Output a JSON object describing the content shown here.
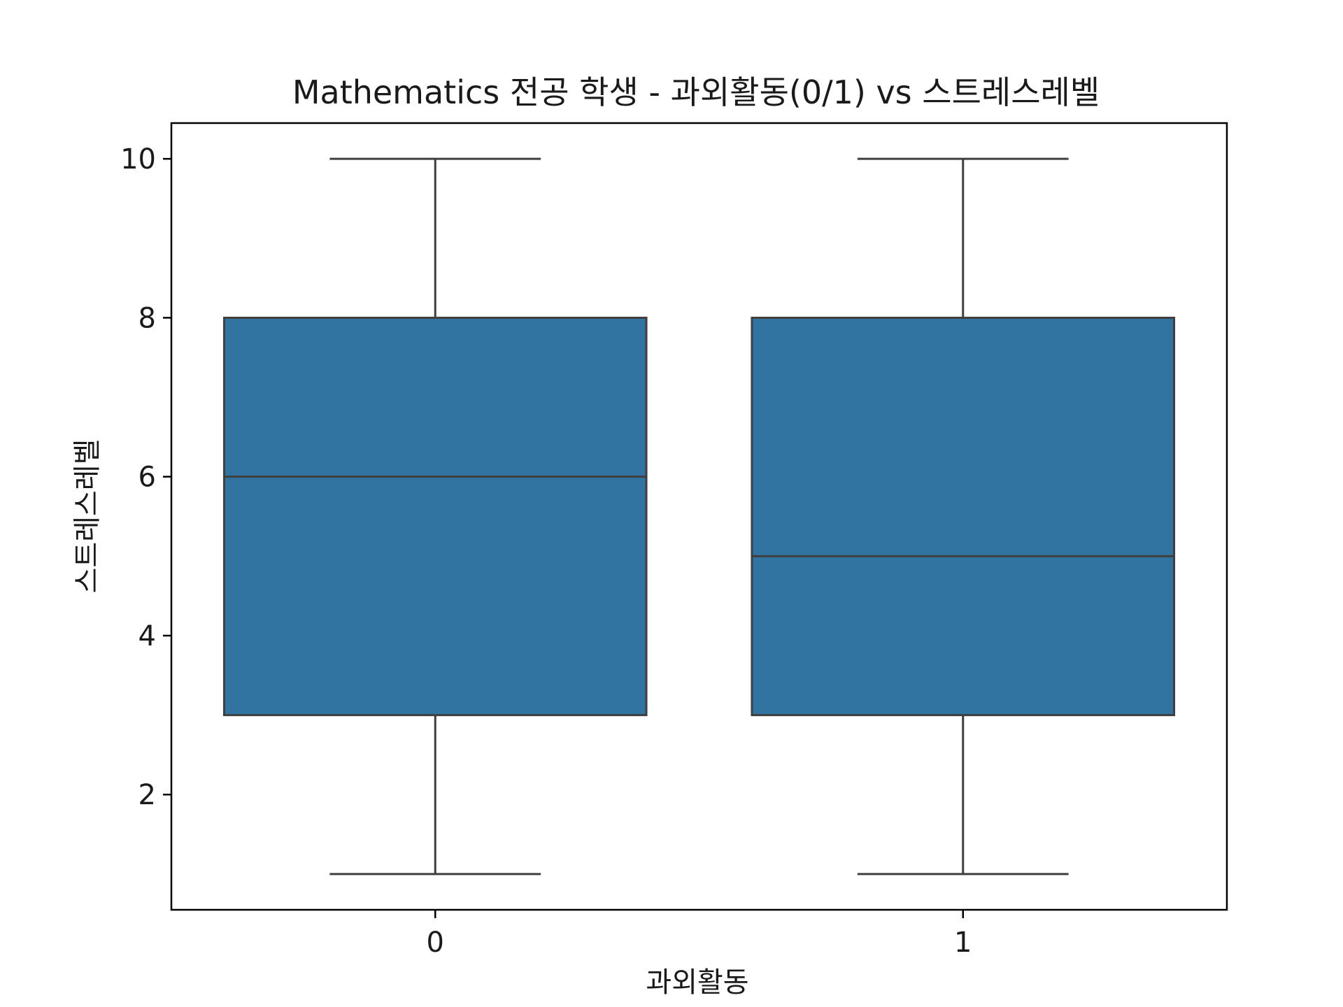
{
  "chart_data": {
    "type": "box",
    "title": "Mathematics 전공 학생 - 과외활동(0/1) vs 스트레스레벨",
    "xlabel": "과외활동",
    "ylabel": "스트레스레벨",
    "categories": [
      "0",
      "1"
    ],
    "boxes": [
      {
        "category": "0",
        "whisker_low": 1,
        "q1": 3,
        "median": 6,
        "q3": 8,
        "whisker_high": 10
      },
      {
        "category": "1",
        "whisker_low": 1,
        "q1": 3,
        "median": 5,
        "q3": 8,
        "whisker_high": 10
      }
    ],
    "ylim": [
      0.55,
      10.45
    ],
    "yticks": [
      2,
      4,
      6,
      8,
      10
    ],
    "grid": false,
    "legend": "none",
    "box_color": "#3274a1",
    "line_color": "#3f3f3f"
  }
}
